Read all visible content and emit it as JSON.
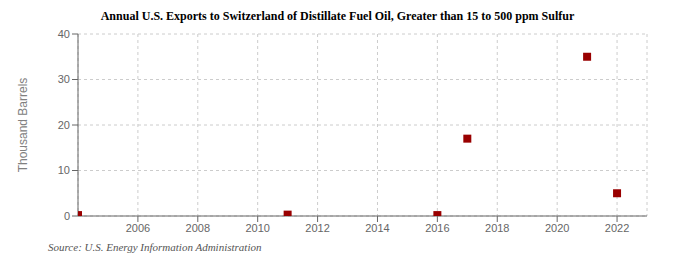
{
  "chart_data": {
    "type": "scatter",
    "title": "Annual U.S. Exports to Switzerland of Distillate Fuel Oil, Greater than 15 to 500 ppm Sulfur",
    "ylabel": "Thousand Barrels",
    "x": [
      2004,
      2011,
      2016,
      2017,
      2021,
      2022
    ],
    "values": [
      0.2,
      0.3,
      0.2,
      17,
      35,
      5
    ],
    "color": "#990000",
    "marker": "square",
    "xlim": [
      2004,
      2023
    ],
    "ylim": [
      0,
      40
    ],
    "xticks": [
      2006,
      2008,
      2010,
      2012,
      2014,
      2016,
      2018,
      2020,
      2022
    ],
    "yticks": [
      0,
      10,
      20,
      30,
      40
    ],
    "grid": true,
    "annotations": [
      "Source: U.S. Energy Information Administration"
    ]
  }
}
